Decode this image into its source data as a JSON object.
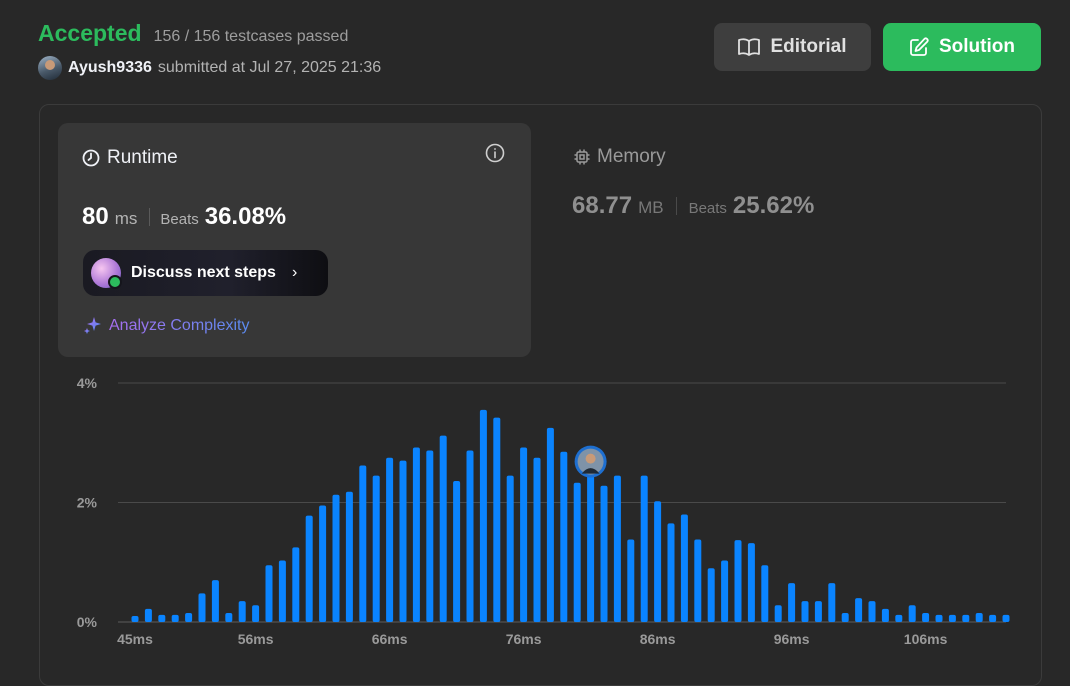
{
  "header": {
    "status": "Accepted",
    "testcases": "156 / 156 testcases passed",
    "username": "Ayush9336",
    "submitted_text": "submitted at Jul 27, 2025 21:36",
    "editorial_label": "Editorial",
    "solution_label": "Solution"
  },
  "runtime": {
    "title": "Runtime",
    "value": "80",
    "unit": "ms",
    "beats_label": "Beats",
    "beats_pct": "36.08%",
    "discuss_label": "Discuss next steps",
    "analyze_label": "Analyze Complexity"
  },
  "memory": {
    "title": "Memory",
    "value": "68.77",
    "unit": "MB",
    "beats_label": "Beats",
    "beats_pct": "25.62%"
  },
  "colors": {
    "accepted": "#2cbb5d",
    "bar": "#0a84ff",
    "solution_button": "#2cbb5d"
  },
  "chart_data": {
    "type": "bar",
    "ylim": [
      0,
      4
    ],
    "y_ticks": [
      {
        "value": 0,
        "label": "0%"
      },
      {
        "value": 2,
        "label": "2%"
      },
      {
        "value": 4,
        "label": "4%"
      }
    ],
    "x_ticks": [
      "45ms",
      "56ms",
      "66ms",
      "76ms",
      "86ms",
      "96ms",
      "106ms"
    ],
    "grid": true,
    "series": [
      {
        "values": [
          0.1,
          0.22,
          0.12,
          0.12,
          0.15,
          0.48,
          0.7,
          0.15,
          0.35,
          0.28,
          0.95,
          1.03,
          1.25,
          1.78,
          1.95,
          2.13,
          2.18,
          2.62,
          2.45,
          2.75,
          2.7,
          2.92,
          2.87,
          3.12,
          2.36,
          2.87,
          3.55,
          3.42,
          2.45,
          2.92,
          2.75,
          3.25,
          2.85,
          2.33,
          2.45,
          2.28,
          2.45,
          1.38,
          2.45,
          2.02,
          1.65,
          1.8,
          1.38,
          0.9,
          1.03,
          1.37,
          1.32,
          0.95,
          0.28,
          0.65,
          0.35,
          0.35,
          0.65,
          0.15,
          0.4,
          0.35,
          0.22,
          0.12,
          0.28,
          0.15,
          0.12,
          0.12,
          0.12,
          0.15,
          0.12,
          0.12
        ]
      }
    ],
    "highlight_index": 34
  }
}
